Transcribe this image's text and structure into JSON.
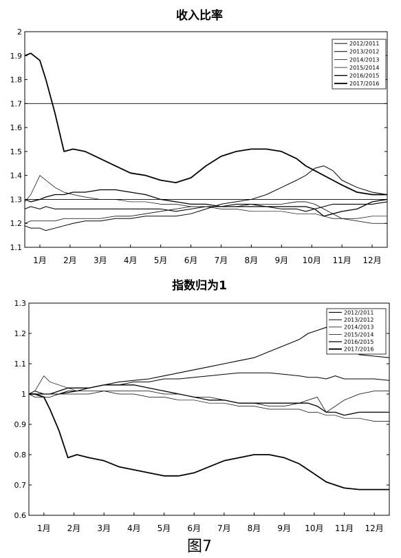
{
  "figure_caption": "图7",
  "chart_data": [
    {
      "type": "line",
      "title": "收入比率",
      "xlabel": "",
      "ylabel": "",
      "x_ticks": [
        "1月",
        "2月",
        "3月",
        "4月",
        "5月",
        "6月",
        "7月",
        "8月",
        "9月",
        "10月",
        "11月",
        "12月"
      ],
      "ylim": [
        1.1,
        2.0
      ],
      "y_ticks": [
        "1.1",
        "1.2",
        "1.3",
        "1.4",
        "1.5",
        "1.6",
        "1.7",
        "1.8",
        "1.9",
        "2"
      ],
      "grid": false,
      "legend_position": "top-right",
      "reference_lines": [
        2.0,
        1.7,
        1.3
      ],
      "x": [
        0,
        0.2,
        0.5,
        0.7,
        1,
        1.3,
        1.6,
        2,
        2.5,
        3,
        3.5,
        4,
        4.5,
        5,
        5.5,
        6,
        6.5,
        7,
        7.5,
        8,
        8.5,
        9,
        9.3,
        9.6,
        9.9,
        10.2,
        10.5,
        11,
        11.5,
        12
      ],
      "series": [
        {
          "name": "2012/2011",
          "values": [
            1.26,
            1.27,
            1.26,
            1.27,
            1.26,
            1.26,
            1.26,
            1.26,
            1.26,
            1.26,
            1.26,
            1.26,
            1.26,
            1.25,
            1.26,
            1.27,
            1.27,
            1.28,
            1.28,
            1.27,
            1.26,
            1.26,
            1.25,
            1.26,
            1.27,
            1.28,
            1.28,
            1.28,
            1.28,
            1.29
          ]
        },
        {
          "name": "2013/2012",
          "values": [
            1.19,
            1.18,
            1.18,
            1.17,
            1.18,
            1.19,
            1.2,
            1.21,
            1.21,
            1.22,
            1.22,
            1.23,
            1.23,
            1.23,
            1.24,
            1.26,
            1.28,
            1.29,
            1.3,
            1.32,
            1.35,
            1.38,
            1.4,
            1.43,
            1.44,
            1.42,
            1.38,
            1.35,
            1.33,
            1.32
          ]
        },
        {
          "name": "2014/2013",
          "values": [
            1.2,
            1.21,
            1.21,
            1.21,
            1.21,
            1.22,
            1.22,
            1.22,
            1.22,
            1.23,
            1.23,
            1.24,
            1.25,
            1.26,
            1.27,
            1.27,
            1.27,
            1.27,
            1.28,
            1.28,
            1.28,
            1.29,
            1.29,
            1.28,
            1.26,
            1.24,
            1.22,
            1.21,
            1.2,
            1.2
          ]
        },
        {
          "name": "2015/2014",
          "values": [
            1.29,
            1.32,
            1.4,
            1.38,
            1.35,
            1.33,
            1.32,
            1.31,
            1.3,
            1.3,
            1.29,
            1.29,
            1.28,
            1.28,
            1.27,
            1.27,
            1.26,
            1.26,
            1.25,
            1.25,
            1.25,
            1.24,
            1.24,
            1.24,
            1.23,
            1.22,
            1.22,
            1.22,
            1.23,
            1.23
          ]
        },
        {
          "name": "2016/2015",
          "values": [
            1.3,
            1.29,
            1.3,
            1.31,
            1.32,
            1.32,
            1.33,
            1.33,
            1.34,
            1.34,
            1.33,
            1.32,
            1.3,
            1.29,
            1.28,
            1.28,
            1.27,
            1.27,
            1.27,
            1.27,
            1.27,
            1.27,
            1.27,
            1.26,
            1.23,
            1.24,
            1.25,
            1.26,
            1.29,
            1.3
          ]
        },
        {
          "name": "2017/2016",
          "values": [
            1.9,
            1.91,
            1.88,
            1.8,
            1.66,
            1.5,
            1.51,
            1.5,
            1.47,
            1.44,
            1.41,
            1.4,
            1.38,
            1.37,
            1.39,
            1.44,
            1.48,
            1.5,
            1.51,
            1.51,
            1.5,
            1.47,
            1.44,
            1.42,
            1.4,
            1.38,
            1.36,
            1.33,
            1.32,
            1.32
          ]
        }
      ]
    },
    {
      "type": "line",
      "title": "指数归为1",
      "xlabel": "",
      "ylabel": "",
      "x_ticks": [
        "1月",
        "2月",
        "3月",
        "4月",
        "5月",
        "6月",
        "7月",
        "8月",
        "9月",
        "10月",
        "11月",
        "12月"
      ],
      "ylim": [
        0.6,
        1.3
      ],
      "y_ticks": [
        "0.6",
        "0.7",
        "0.8",
        "0.9",
        "1",
        "1.1",
        "1.2",
        "1.3"
      ],
      "grid": false,
      "legend_position": "top-right",
      "x": [
        0,
        0.2,
        0.5,
        0.7,
        1,
        1.3,
        1.6,
        2,
        2.5,
        3,
        3.5,
        4,
        4.5,
        5,
        5.5,
        6,
        6.5,
        7,
        7.5,
        8,
        8.5,
        9,
        9.3,
        9.6,
        9.9,
        10.2,
        10.5,
        11,
        11.5,
        12
      ],
      "series": [
        {
          "name": "2012/2011",
          "values": [
            1.0,
            1.0,
            1.0,
            1.0,
            1.0,
            1.005,
            1.01,
            1.02,
            1.03,
            1.04,
            1.045,
            1.05,
            1.06,
            1.07,
            1.08,
            1.09,
            1.1,
            1.11,
            1.12,
            1.14,
            1.16,
            1.18,
            1.2,
            1.21,
            1.22,
            1.19,
            1.16,
            1.13,
            1.125,
            1.12
          ]
        },
        {
          "name": "2013/2012",
          "values": [
            1.0,
            1.01,
            1.0,
            1.0,
            1.0,
            1.01,
            1.01,
            1.02,
            1.03,
            1.03,
            1.04,
            1.04,
            1.05,
            1.05,
            1.055,
            1.06,
            1.065,
            1.07,
            1.07,
            1.07,
            1.065,
            1.06,
            1.055,
            1.055,
            1.05,
            1.06,
            1.05,
            1.05,
            1.05,
            1.045
          ]
        },
        {
          "name": "2014/2013",
          "values": [
            1.0,
            0.99,
            0.99,
            0.99,
            1.0,
            1.0,
            1.0,
            1.0,
            1.01,
            1.01,
            1.01,
            1.01,
            1.0,
            1.0,
            0.99,
            0.99,
            0.98,
            0.97,
            0.97,
            0.96,
            0.96,
            0.97,
            0.98,
            0.99,
            0.94,
            0.96,
            0.98,
            1.0,
            1.01,
            1.01
          ]
        },
        {
          "name": "2015/2014",
          "values": [
            1.0,
            1.01,
            1.06,
            1.04,
            1.03,
            1.02,
            1.01,
            1.01,
            1.01,
            1.0,
            1.0,
            0.99,
            0.99,
            0.98,
            0.98,
            0.97,
            0.97,
            0.96,
            0.96,
            0.95,
            0.95,
            0.95,
            0.94,
            0.94,
            0.93,
            0.93,
            0.92,
            0.92,
            0.91,
            0.91
          ]
        },
        {
          "name": "2016/2015",
          "values": [
            1.0,
            1.0,
            1.0,
            1.0,
            1.01,
            1.02,
            1.02,
            1.02,
            1.03,
            1.03,
            1.03,
            1.02,
            1.01,
            1.0,
            0.99,
            0.98,
            0.98,
            0.97,
            0.97,
            0.97,
            0.97,
            0.97,
            0.97,
            0.96,
            0.94,
            0.94,
            0.93,
            0.94,
            0.94,
            0.94
          ]
        },
        {
          "name": "2017/2016",
          "values": [
            1.0,
            1.0,
            0.99,
            0.95,
            0.88,
            0.79,
            0.8,
            0.79,
            0.78,
            0.76,
            0.75,
            0.74,
            0.73,
            0.73,
            0.74,
            0.76,
            0.78,
            0.79,
            0.8,
            0.8,
            0.79,
            0.77,
            0.75,
            0.73,
            0.71,
            0.7,
            0.69,
            0.685,
            0.685,
            0.685
          ]
        }
      ]
    }
  ]
}
